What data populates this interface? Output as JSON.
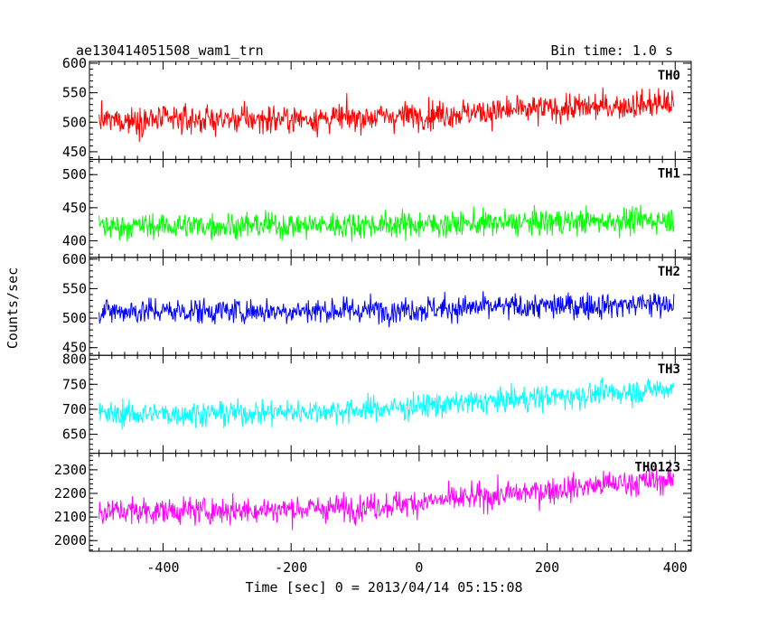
{
  "header": {
    "title": "ae130414051508_wam1_trn",
    "bin_time": "Bin time: 1.0 s"
  },
  "chart_data": {
    "type": "line",
    "title": "ae130414051508_wam1_trn",
    "subtitle": "Bin time: 1.0 s",
    "xlabel": "Time [sec] 0 = 2013/04/14 05:15:08",
    "ylabel": "Counts/sec",
    "xlim": [
      -515,
      425
    ],
    "x_ticks": [
      -400,
      -200,
      0,
      200,
      400
    ],
    "x_start": -500,
    "x_end": 398,
    "bin_seconds": 1.0,
    "grid": false,
    "legend": "none",
    "panels": [
      {
        "name": "TH0",
        "color": "#ff0000",
        "ylim": [
          437,
          603
        ],
        "y_ticks": [
          450,
          500,
          550,
          600
        ],
        "trend": [
          [
            -500,
            503
          ],
          [
            -300,
            505
          ],
          [
            -150,
            506
          ],
          [
            0,
            512
          ],
          [
            150,
            520
          ],
          [
            300,
            527
          ],
          [
            398,
            533
          ]
        ],
        "spread": 40
      },
      {
        "name": "TH1",
        "color": "#00ff00",
        "ylim": [
          375,
          523
        ],
        "y_ticks": [
          400,
          450,
          500
        ],
        "trend": [
          [
            -500,
            422
          ],
          [
            -300,
            423
          ],
          [
            -100,
            424
          ],
          [
            100,
            426
          ],
          [
            300,
            430
          ],
          [
            398,
            432
          ]
        ],
        "spread": 33
      },
      {
        "name": "TH2",
        "color": "#0000ff",
        "ylim": [
          437,
          603
        ],
        "y_ticks": [
          450,
          500,
          550,
          600
        ],
        "trend": [
          [
            -500,
            512
          ],
          [
            -300,
            512
          ],
          [
            -100,
            513
          ],
          [
            100,
            518
          ],
          [
            300,
            522
          ],
          [
            398,
            526
          ]
        ],
        "spread": 37
      },
      {
        "name": "TH3",
        "color": "#00ffff",
        "ylim": [
          612,
          808
        ],
        "y_ticks": [
          650,
          700,
          750,
          800
        ],
        "trend": [
          [
            -500,
            690
          ],
          [
            -300,
            692
          ],
          [
            -100,
            698
          ],
          [
            100,
            715
          ],
          [
            300,
            733
          ],
          [
            398,
            742
          ]
        ],
        "spread": 42
      },
      {
        "name": "TH0123",
        "color": "#ff00ff",
        "ylim": [
          1955,
          2370
        ],
        "y_ticks": [
          2000,
          2100,
          2200,
          2300
        ],
        "trend": [
          [
            -500,
            2125
          ],
          [
            -300,
            2128
          ],
          [
            -100,
            2140
          ],
          [
            100,
            2185
          ],
          [
            300,
            2240
          ],
          [
            398,
            2258
          ]
        ],
        "spread": 95
      }
    ]
  }
}
